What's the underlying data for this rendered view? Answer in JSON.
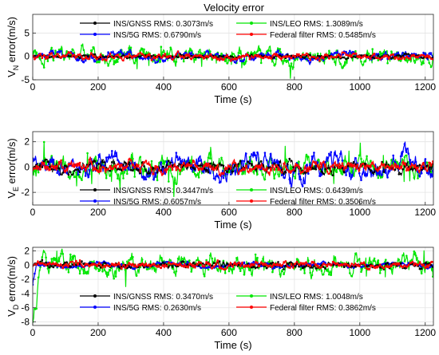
{
  "figure": {
    "title": "Velocity error"
  },
  "colors": {
    "ins_gnss": "#000000",
    "ins_leo": "#00e600",
    "ins_5g": "#0000ff",
    "federal": "#ff0000",
    "grid": "#e4e4e4",
    "axis": "#262626"
  },
  "chart_data": [
    {
      "type": "line",
      "title": "Velocity error",
      "xlabel": "Time (s)",
      "ylabel": {
        "main": "V",
        "sub": "N",
        "rest": " error(m/s)"
      },
      "xlim": [
        0,
        1225
      ],
      "ylim": [
        -5,
        9
      ],
      "xticks": [
        0,
        200,
        400,
        600,
        800,
        1000,
        1200
      ],
      "yticks": [
        -5,
        0,
        5
      ],
      "grid": true,
      "legend_position": "top",
      "series": [
        {
          "name": "INS/GNSS",
          "rms": "RMS: 0.3073m/s",
          "amp": 0.3073
        },
        {
          "name": "INS/LEO",
          "rms": "RMS: 1.3089m/s",
          "amp": 1.3089
        },
        {
          "name": "INS/5G",
          "rms": "RMS: 0.6790m/s",
          "amp": 0.679
        },
        {
          "name": "Federal filter",
          "rms": "RMS: 0.5485m/s",
          "amp": 0.5485
        }
      ]
    },
    {
      "type": "line",
      "title": "",
      "xlabel": "Time (s)",
      "ylabel": {
        "main": "V",
        "sub": "E",
        "rest": " error(m/s)"
      },
      "xlim": [
        0,
        1225
      ],
      "ylim": [
        -3,
        2.8
      ],
      "xticks": [
        0,
        200,
        400,
        600,
        800,
        1000,
        1200
      ],
      "yticks": [
        -2,
        0,
        2
      ],
      "grid": true,
      "legend_position": "bottom",
      "series": [
        {
          "name": "INS/GNSS",
          "rms": "RMS: 0.3447m/s",
          "amp": 0.3447
        },
        {
          "name": "INS/LEO",
          "rms": "RMS: 0.6439m/s",
          "amp": 0.6439
        },
        {
          "name": "INS/5G",
          "rms": "RMS: 0.6057m/s",
          "amp": 0.6057
        },
        {
          "name": "Federal filter",
          "rms": "RMS: 0.3506m/s",
          "amp": 0.3506
        }
      ]
    },
    {
      "type": "line",
      "title": "",
      "xlabel": "Time (s)",
      "ylabel": {
        "main": "V",
        "sub": "D",
        "rest": " error(m/s)"
      },
      "xlim": [
        0,
        1225
      ],
      "ylim": [
        -8.5,
        2.5
      ],
      "xticks": [
        0,
        200,
        400,
        600,
        800,
        1000,
        1200
      ],
      "yticks": [
        -8,
        -6,
        -4,
        -2,
        0,
        2
      ],
      "grid": true,
      "legend_position": "bottom",
      "series": [
        {
          "name": "INS/GNSS",
          "rms": "RMS: 0.3470m/s",
          "amp": 0.347
        },
        {
          "name": "INS/LEO",
          "rms": "RMS: 1.0048m/s",
          "amp": 1.0048
        },
        {
          "name": "INS/5G",
          "rms": "RMS: 0.2630m/s",
          "amp": 0.263
        },
        {
          "name": "Federal filter",
          "rms": "RMS: 0.3862m/s",
          "amp": 0.3862
        }
      ]
    }
  ]
}
